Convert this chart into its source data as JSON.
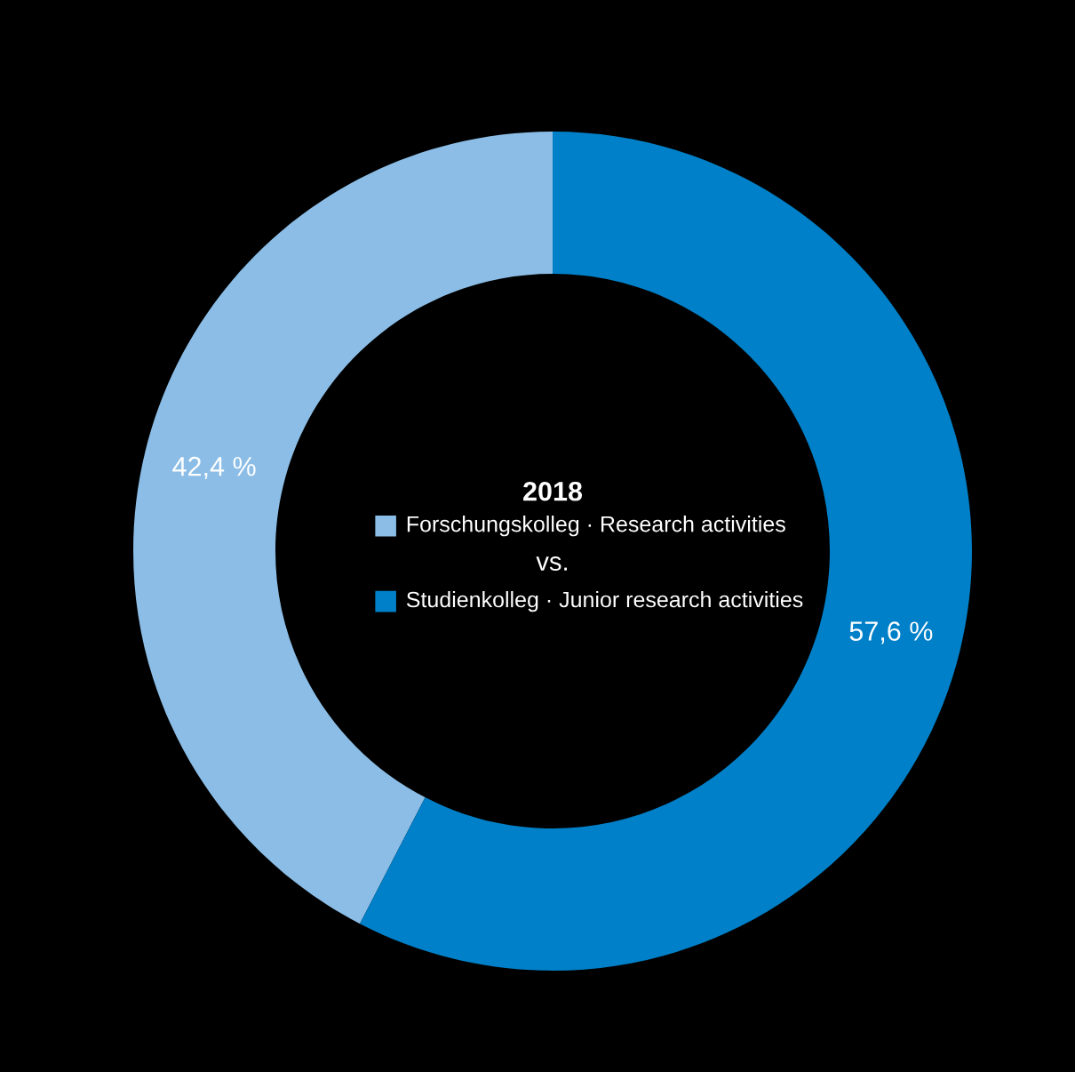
{
  "chart_data": {
    "type": "donut",
    "legend_title": "2018",
    "categories": [
      "Forschungskolleg · Research activities",
      "Studienkolleg · Junior research activities"
    ],
    "values": [
      42.4,
      57.6
    ],
    "colors": [
      "#8bbde6",
      "#0080c8"
    ],
    "value_labels": [
      "42,4 %",
      "57,6 %"
    ],
    "annotations": [
      "vs."
    ],
    "legend": "center"
  }
}
